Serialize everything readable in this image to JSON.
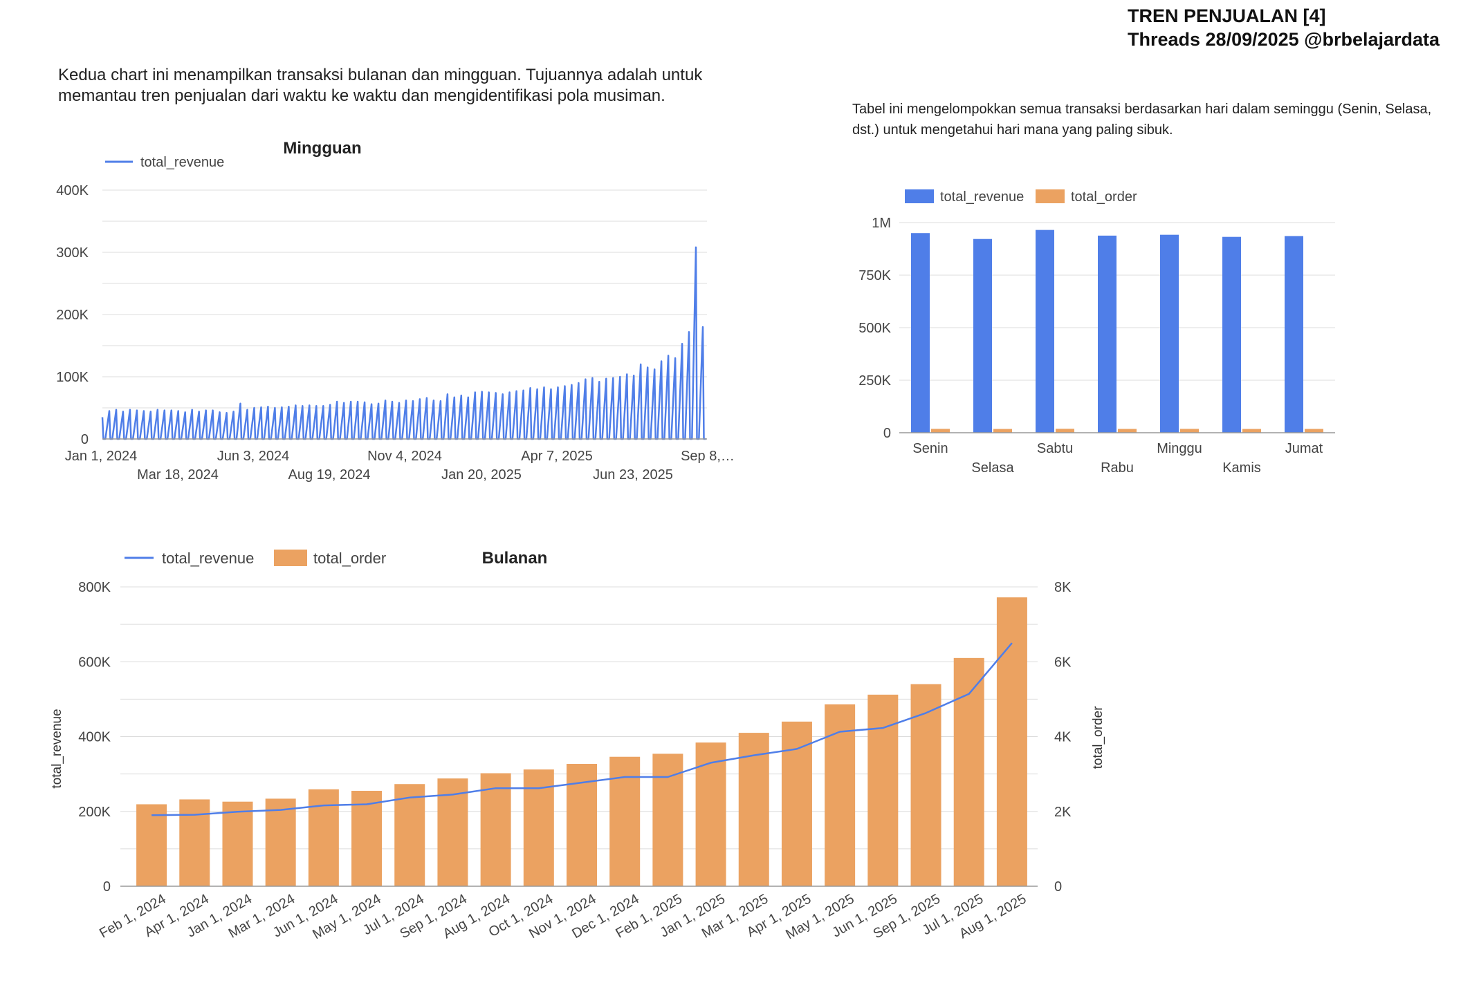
{
  "header": {
    "title_line1": "TREN PENJUALAN [4]",
    "title_line2": "Threads 28/09/2025 @brbelajardata"
  },
  "descriptions": {
    "left": "Kedua chart ini menampilkan transaksi bulanan dan mingguan. Tujuannya adalah untuk memantau tren penjualan dari waktu ke waktu dan mengidentifikasi pola musiman.",
    "right": "Tabel ini mengelompokkan semua transaksi berdasarkan hari dalam seminggu (Senin, Selasa, dst.) untuk mengetahui hari mana yang paling sibuk."
  },
  "colors": {
    "revenue": "#4f7ee8",
    "order": "#eba261",
    "grid": "#dcdcdc",
    "axis": "#999999"
  },
  "chart_data": [
    {
      "id": "weekly",
      "type": "line",
      "title": "Mingguan",
      "legend_position": "top-left",
      "ylim": [
        0,
        400000
      ],
      "y_ticks": [
        "0",
        "100K",
        "200K",
        "300K",
        "400K"
      ],
      "x_tick_labels": [
        "Jan 1, 2024",
        "Mar 18, 2024",
        "Jun 3, 2024",
        "Aug 19, 2024",
        "Nov 4, 2024",
        "Jan 20, 2025",
        "Apr 7, 2025",
        "Jun 23, 2025",
        "Sep 8,…"
      ],
      "series": [
        {
          "name": "total_revenue",
          "values": [
            35000,
            45000,
            47000,
            44000,
            47000,
            46000,
            45000,
            44000,
            47000,
            46000,
            46000,
            45000,
            43000,
            47000,
            44000,
            46000,
            46000,
            43000,
            42000,
            44000,
            57000,
            47000,
            50000,
            51000,
            52000,
            50000,
            51000,
            52000,
            54000,
            53000,
            54000,
            53000,
            53000,
            55000,
            60000,
            58000,
            60000,
            60000,
            59000,
            56000,
            57000,
            62000,
            60000,
            58000,
            62000,
            61000,
            64000,
            66000,
            62000,
            61000,
            72000,
            67000,
            70000,
            67000,
            75000,
            76000,
            75000,
            74000,
            72000,
            75000,
            77000,
            78000,
            82000,
            80000,
            83000,
            80000,
            83000,
            85000,
            87000,
            90000,
            96000,
            98000,
            92000,
            97000,
            98000,
            100000,
            104000,
            102000,
            120000,
            115000,
            112000,
            125000,
            134000,
            130000,
            153000,
            172000,
            308000,
            180000
          ]
        }
      ]
    },
    {
      "id": "daily",
      "type": "bar",
      "legend_position": "top-left",
      "ylim": [
        0,
        1000000
      ],
      "y_ticks": [
        "0",
        "250K",
        "500K",
        "750K",
        "1M"
      ],
      "categories": [
        "Senin",
        "Selasa",
        "Sabtu",
        "Rabu",
        "Minggu",
        "Kamis",
        "Jumat"
      ],
      "series": [
        {
          "name": "total_revenue",
          "values": [
            950000,
            922000,
            965000,
            938000,
            942000,
            932000,
            936000
          ]
        },
        {
          "name": "total_order",
          "values": [
            9200,
            9000,
            9400,
            9100,
            9200,
            9000,
            9100
          ]
        }
      ]
    },
    {
      "id": "monthly",
      "type": "bar",
      "title": "Bulanan",
      "legend_position": "top-left",
      "ylabel": "total_revenue",
      "y2label": "total_order",
      "ylim": [
        0,
        800000
      ],
      "y2lim": [
        0,
        8000
      ],
      "y_ticks": [
        "0",
        "200K",
        "400K",
        "600K",
        "800K"
      ],
      "y2_ticks": [
        "0",
        "2K",
        "4K",
        "6K",
        "8K"
      ],
      "categories": [
        "Feb 1, 2024",
        "Apr 1, 2024",
        "Jan 1, 2024",
        "Mar 1, 2024",
        "Jun 1, 2024",
        "May 1, 2024",
        "Jul 1, 2024",
        "Sep 1, 2024",
        "Aug 1, 2024",
        "Oct 1, 2024",
        "Nov 1, 2024",
        "Dec 1, 2024",
        "Feb 1, 2025",
        "Jan 1, 2025",
        "Mar 1, 2025",
        "Apr 1, 2025",
        "May 1, 2025",
        "Jun 1, 2025",
        "Sep 1, 2025",
        "Jul 1, 2025",
        "Aug 1, 2025"
      ],
      "series": [
        {
          "name": "total_revenue",
          "chart": "line",
          "axis": "left",
          "values": [
            190000,
            191000,
            199000,
            204000,
            216000,
            219000,
            237000,
            245000,
            262000,
            262000,
            277000,
            292000,
            292000,
            330000,
            350000,
            367000,
            413000,
            423000,
            463000,
            514000,
            650000
          ]
        },
        {
          "name": "total_order",
          "chart": "bar",
          "axis": "right",
          "values": [
            2190,
            2320,
            2260,
            2340,
            2590,
            2550,
            2730,
            2880,
            3020,
            3120,
            3270,
            3460,
            3540,
            3840,
            4100,
            4400,
            4860,
            5120,
            5400,
            6100,
            7720
          ]
        }
      ]
    }
  ]
}
